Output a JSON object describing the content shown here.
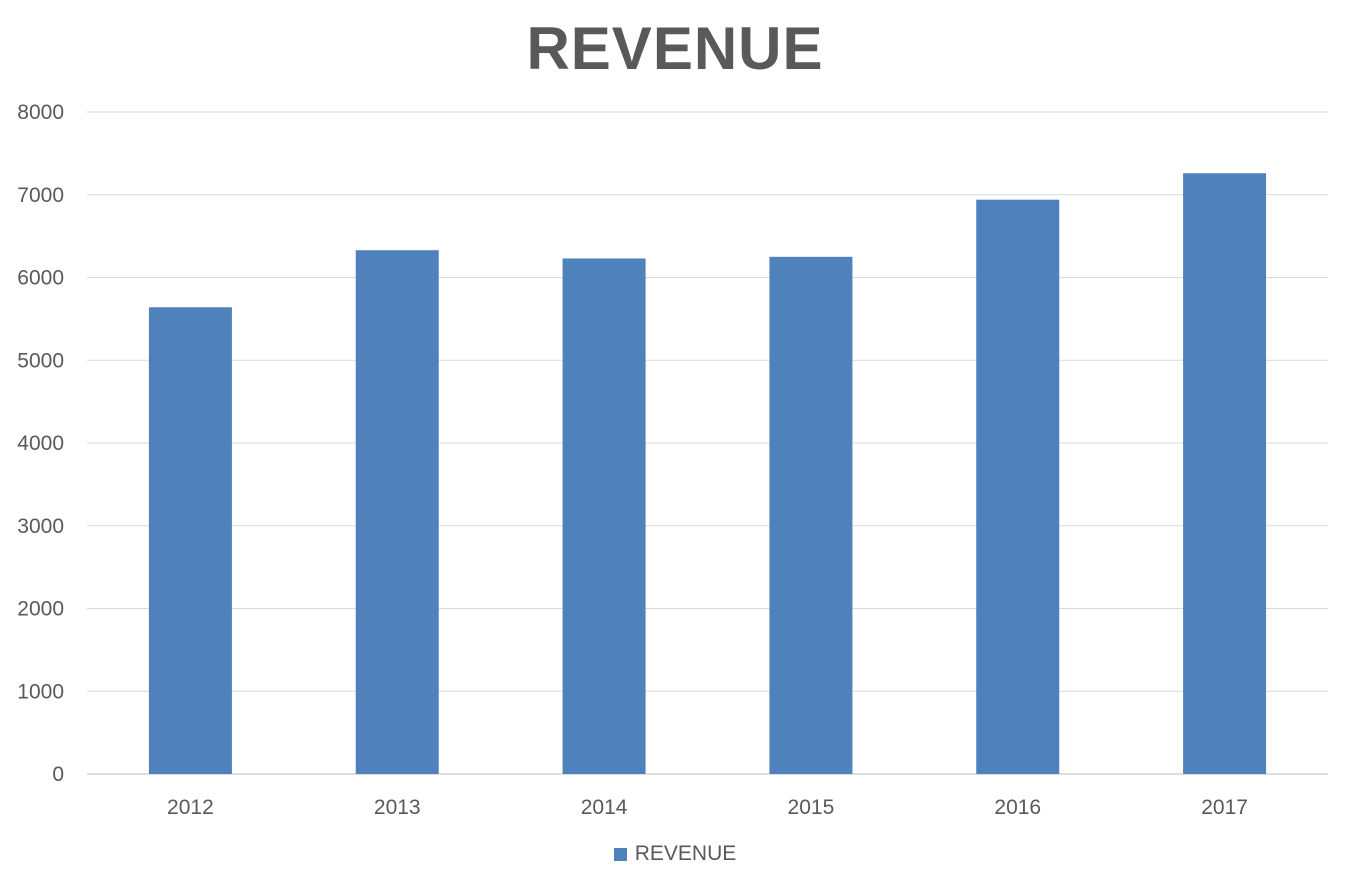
{
  "chart_data": {
    "type": "bar",
    "title": "REVENUE",
    "categories": [
      "2012",
      "2013",
      "2014",
      "2015",
      "2016",
      "2017"
    ],
    "series": [
      {
        "name": "REVENUE",
        "values": [
          5640,
          6330,
          6230,
          6250,
          6940,
          7260
        ],
        "color": "#4F81BD"
      }
    ],
    "xlabel": "",
    "ylabel": "",
    "ylim": [
      0,
      8000
    ],
    "yticks": [
      "0",
      "1000",
      "2000",
      "3000",
      "4000",
      "5000",
      "6000",
      "7000",
      "8000"
    ],
    "grid": true,
    "legend_position": "bottom"
  }
}
